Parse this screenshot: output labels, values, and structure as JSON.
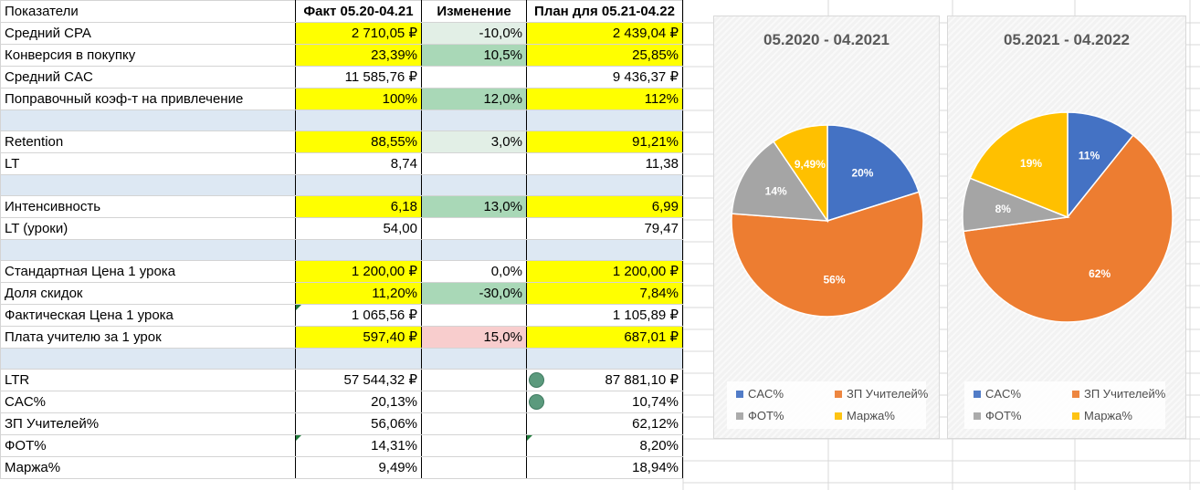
{
  "table": {
    "headers": [
      "Показатели",
      "Факт 05.20-04.21",
      "Изменение",
      "План для 05.21-04.22"
    ],
    "rows": [
      {
        "label": "Средний CPA",
        "fact": "2 710,05 ₽",
        "change": "-10,0%",
        "plan": "2 439,04 ₽",
        "fact_fill": "yellow",
        "change_fill": "green-light",
        "plan_fill": "yellow"
      },
      {
        "label": "Конверсия в покупку",
        "fact": "23,39%",
        "change": "10,5%",
        "plan": "25,85%",
        "fact_fill": "yellow",
        "change_fill": "green",
        "plan_fill": "yellow"
      },
      {
        "label": "Средний CAC",
        "fact": "11 585,76 ₽",
        "change": "",
        "plan": "9 436,37 ₽"
      },
      {
        "label": "Поправочный коэф-т на привлечение",
        "fact": "100%",
        "change": "12,0%",
        "plan": "112%",
        "fact_fill": "yellow",
        "change_fill": "green",
        "plan_fill": "yellow"
      },
      {
        "band": true
      },
      {
        "label": "Retention",
        "fact": "88,55%",
        "change": "3,0%",
        "plan": "91,21%",
        "fact_fill": "yellow",
        "change_fill": "green-light",
        "plan_fill": "yellow"
      },
      {
        "label": "LT",
        "fact": "8,74",
        "change": "",
        "plan": "11,38"
      },
      {
        "band": true
      },
      {
        "label": "Интенсивность",
        "fact": "6,18",
        "change": "13,0%",
        "plan": "6,99",
        "fact_fill": "yellow",
        "change_fill": "green",
        "plan_fill": "yellow"
      },
      {
        "label": "LT (уроки)",
        "fact": "54,00",
        "change": "",
        "plan": "79,47"
      },
      {
        "band": true
      },
      {
        "label": "Стандартная Цена 1 урока",
        "fact": "1 200,00 ₽",
        "change": "0,0%",
        "plan": "1 200,00 ₽",
        "fact_fill": "yellow",
        "plan_fill": "yellow"
      },
      {
        "label": "Доля скидок",
        "fact": "11,20%",
        "change": "-30,0%",
        "plan": "7,84%",
        "fact_fill": "yellow",
        "change_fill": "green",
        "plan_fill": "yellow"
      },
      {
        "label": "Фактическая Цена 1 урока",
        "fact": "1 065,56 ₽",
        "change": "",
        "plan": "1 105,89 ₽",
        "fact_marker": true
      },
      {
        "label": "Плата учителю за 1 урок",
        "fact": "597,40 ₽",
        "change": "15,0%",
        "plan": "687,01 ₽",
        "fact_fill": "yellow",
        "change_fill": "red-light",
        "plan_fill": "yellow"
      },
      {
        "band": true
      },
      {
        "label": "LTR",
        "fact": "57 544,32 ₽",
        "change": "",
        "plan": "87 881,10 ₽",
        "plan_dot": true
      },
      {
        "label": "CAC%",
        "fact": "20,13%",
        "change": "",
        "plan": "10,74%",
        "plan_dot": true
      },
      {
        "label": "ЗП Учителей%",
        "fact": "56,06%",
        "change": "",
        "plan": "62,12%"
      },
      {
        "label": "ФОТ%",
        "fact": "14,31%",
        "change": "",
        "plan": "8,20%",
        "fact_marker": true,
        "plan_marker": true
      },
      {
        "label": "Маржа%",
        "fact": "9,49%",
        "change": "",
        "plan": "18,94%"
      }
    ]
  },
  "colors": {
    "cac": "#4472c4",
    "zp": "#ed7d31",
    "fot": "#a5a5a5",
    "marzha": "#ffc000"
  },
  "legend": [
    "CAC%",
    "ЗП Учителей%",
    "ФОТ%",
    "Маржа%"
  ],
  "chart_data": [
    {
      "type": "pie",
      "title": "05.2020 - 04.2021",
      "categories": [
        "CAC%",
        "ЗП Учителей%",
        "ФОТ%",
        "Маржа%"
      ],
      "values": [
        20.13,
        56.06,
        14.31,
        9.49
      ],
      "labels": [
        "20%",
        "56%",
        "14%",
        "9,49%"
      ],
      "legend_position": "bottom"
    },
    {
      "type": "pie",
      "title": "05.2021 - 04.2022",
      "categories": [
        "CAC%",
        "ЗП Учителей%",
        "ФОТ%",
        "Маржа%"
      ],
      "values": [
        10.74,
        62.12,
        8.2,
        18.94
      ],
      "labels": [
        "11%",
        "62%",
        "8%",
        "19%"
      ],
      "legend_position": "bottom"
    }
  ]
}
